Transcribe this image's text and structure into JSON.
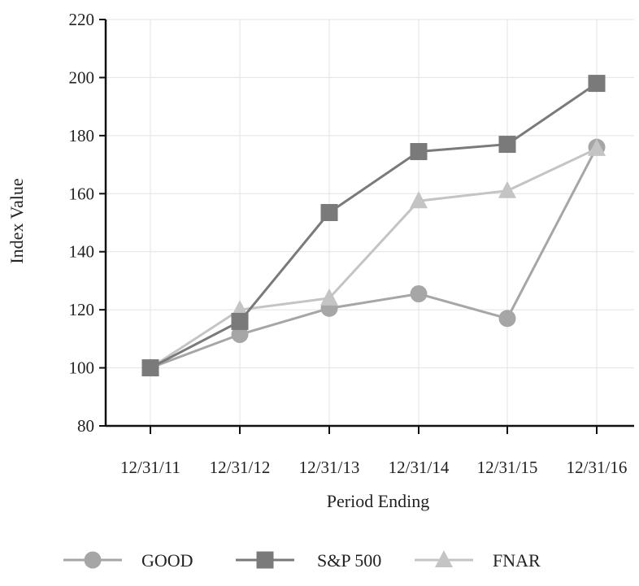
{
  "chart_data": {
    "type": "line",
    "title": "",
    "xlabel": "Period Ending",
    "ylabel": "Index Value",
    "categories": [
      "12/31/11",
      "12/31/12",
      "12/31/13",
      "12/31/14",
      "12/31/15",
      "12/31/16"
    ],
    "ylim": [
      80,
      220
    ],
    "yticks": [
      "80",
      "100",
      "120",
      "140",
      "160",
      "180",
      "200",
      "220"
    ],
    "grid": true,
    "legend_position": "bottom",
    "series": [
      {
        "name": "GOOD",
        "marker": "circle",
        "color": "#a6a6a6",
        "values": [
          100,
          111.5,
          120.5,
          125.5,
          117,
          176
        ]
      },
      {
        "name": "S&P 500",
        "marker": "square",
        "color": "#7a7a7a",
        "values": [
          100,
          116,
          153.5,
          174.5,
          177,
          198
        ]
      },
      {
        "name": "FNAR",
        "marker": "triangle",
        "color": "#c4c4c4",
        "values": [
          100,
          120,
          124,
          157.5,
          161,
          175.5
        ]
      }
    ]
  }
}
